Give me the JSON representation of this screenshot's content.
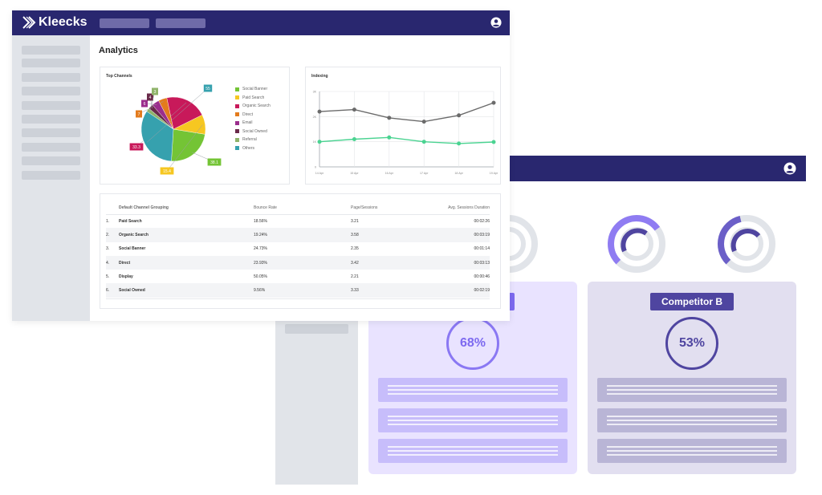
{
  "front": {
    "brand": "Kleecks",
    "page_title": "Analytics",
    "top_channels": {
      "title": "Top Channels",
      "legend": [
        "Social Banner",
        "Paid Search",
        "Organic Search",
        "Direct",
        "Email",
        "Social Owned",
        "Referral",
        "Others"
      ],
      "colors": [
        "#74c435",
        "#f6c721",
        "#c8195a",
        "#e37b1d",
        "#9b2d8c",
        "#6a2a4a",
        "#8fb36a",
        "#36a1ae"
      ]
    },
    "indexing": {
      "title": "Indexing",
      "y_ticks": [
        "3K",
        "2K",
        "1K",
        "0"
      ],
      "x_ticks": [
        "14 Apr",
        "15 Apr",
        "16 Apr",
        "17 Apr",
        "18 Apr",
        "19 Apr"
      ]
    },
    "table": {
      "headers": [
        "Default Channel Grouping",
        "Bounce Rate",
        "Page/Sessions",
        "Avg. Sessions Duration"
      ],
      "rows": [
        {
          "n": "1.",
          "channel": "Paid Search",
          "bounce": "18.56%",
          "pages": "3.21",
          "duration": "00:02:26"
        },
        {
          "n": "2.",
          "channel": "Organic Search",
          "bounce": "19.24%",
          "pages": "3.58",
          "duration": "00:03:19"
        },
        {
          "n": "3.",
          "channel": "Social Banner",
          "bounce": "24.73%",
          "pages": "2.35",
          "duration": "00:01:14"
        },
        {
          "n": "4.",
          "channel": "Direct",
          "bounce": "23.93%",
          "pages": "3.42",
          "duration": "00:03:13"
        },
        {
          "n": "5.",
          "channel": "Display",
          "bounce": "50.05%",
          "pages": "2.21",
          "duration": "00:00:46"
        },
        {
          "n": "6.",
          "channel": "Social Owned",
          "bounce": "9.56%",
          "pages": "3.33",
          "duration": "00:02:19"
        }
      ]
    }
  },
  "chart_data": [
    {
      "type": "pie",
      "title": "Top Channels",
      "categories": [
        "Social Banner",
        "Paid Search",
        "Organic Search",
        "Direct",
        "Email",
        "Social Owned",
        "Referral",
        "Others"
      ],
      "slice_labels": [
        "38.1",
        "15.4",
        "33.3",
        "7",
        "6",
        "4",
        "3",
        "55"
      ],
      "values": [
        19,
        8,
        17,
        3.5,
        3,
        2,
        1.5,
        27
      ]
    },
    {
      "type": "line",
      "title": "Indexing",
      "x": [
        "14 Apr",
        "15 Apr",
        "16 Apr",
        "17 Apr",
        "18 Apr",
        "19 Apr"
      ],
      "ylim": [
        0,
        3000
      ],
      "series": [
        {
          "values": [
            2200,
            2280,
            1950,
            1800,
            2050,
            2550
          ],
          "color": "#6b6b6b"
        },
        {
          "values": [
            1000,
            1100,
            1170,
            1000,
            930,
            990
          ],
          "color": "#4ad391"
        }
      ]
    }
  ],
  "back": {
    "competitors": [
      {
        "label": "",
        "percent": "68%"
      },
      {
        "label": "Competitor B",
        "percent": "53%"
      }
    ],
    "gauges": [
      {
        "fill": 0.35,
        "color": "#8f7cf2"
      },
      {
        "fill": 0.7,
        "color": "#8f7cf2"
      },
      {
        "fill": 0.45,
        "color": "#6b5fc8"
      }
    ]
  }
}
